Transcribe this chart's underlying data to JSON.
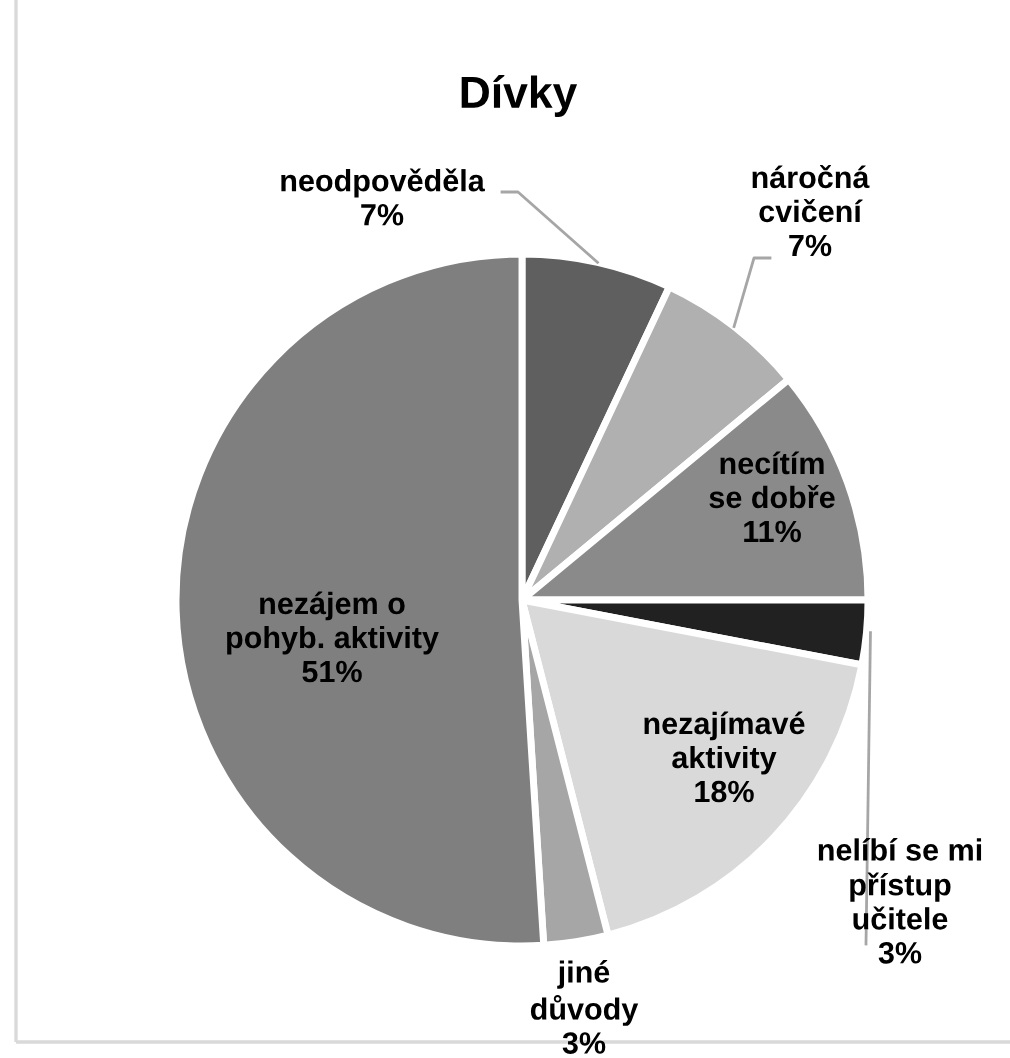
{
  "chart_data": {
    "type": "pie",
    "title": "Dívky",
    "categories": [
      "neodpověděla",
      "náročná\ncvičení",
      "necítím\nse dobře",
      "nelíbí se mi\npřístup\nučitele",
      "nezajímavé\naktivity",
      "jiné\ndůvody",
      "nezájem o\npohyb. aktivity"
    ],
    "values": [
      7,
      7,
      11,
      3,
      18,
      3,
      51
    ],
    "value_labels": [
      "7%",
      "7%",
      "11%",
      "3%",
      "18%",
      "3%",
      "51%"
    ],
    "colors": [
      "#5f5f5f",
      "#b0b0b0",
      "#8a8a8a",
      "#212121",
      "#d9d9d9",
      "#a6a6a6",
      "#7f7f7f"
    ],
    "legend": false
  }
}
